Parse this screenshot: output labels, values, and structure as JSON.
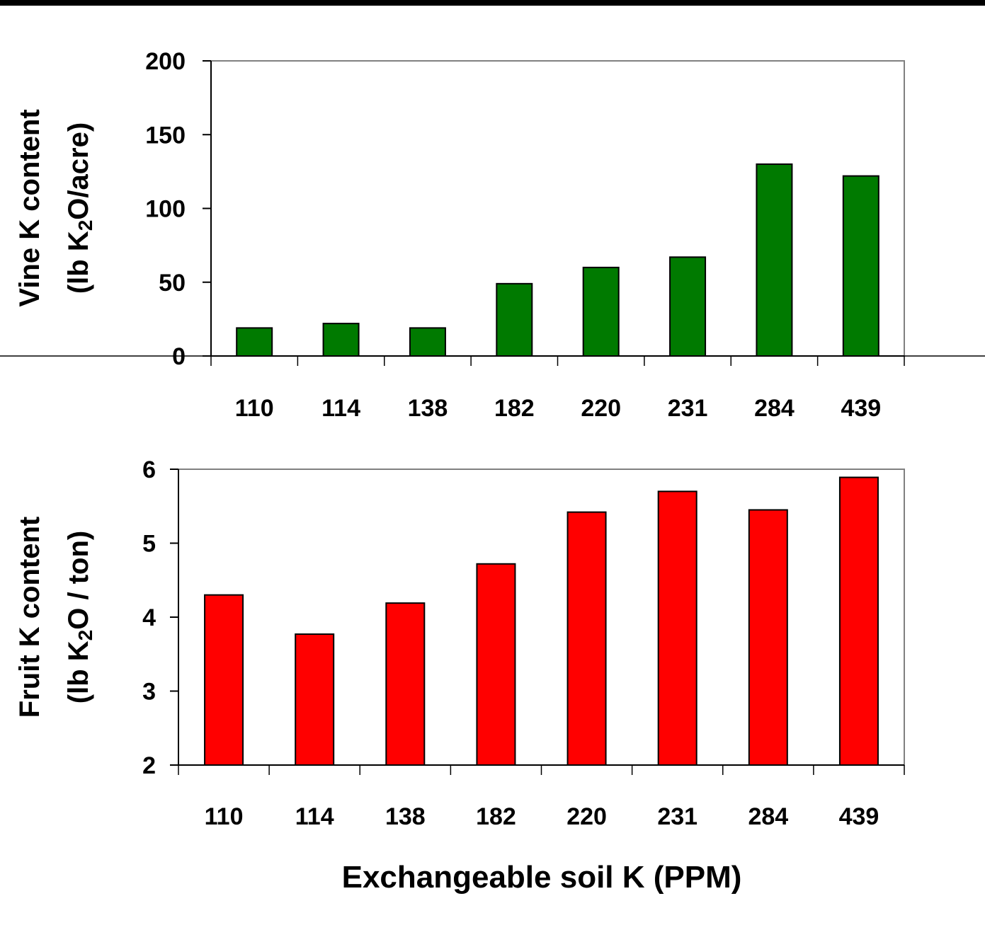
{
  "chart_data": [
    {
      "type": "bar",
      "categories": [
        "110",
        "114",
        "138",
        "182",
        "220",
        "231",
        "284",
        "439"
      ],
      "values": [
        19,
        22,
        19,
        49,
        60,
        67,
        130,
        122
      ],
      "ylabel_line1": "Vine K content",
      "ylabel_line2": {
        "pre": "(lb K",
        "sub": "2",
        "post": "O/acre)"
      },
      "ylim": [
        0,
        200
      ],
      "yticks": [
        "0",
        "50",
        "100",
        "150",
        "200"
      ],
      "bar_color": "#007a00",
      "grid": false
    },
    {
      "type": "bar",
      "categories": [
        "110",
        "114",
        "138",
        "182",
        "220",
        "231",
        "284",
        "439"
      ],
      "values": [
        4.3,
        3.77,
        4.19,
        4.72,
        5.42,
        5.7,
        5.45,
        5.89
      ],
      "ylabel_line1": "Fruit K content",
      "ylabel_line2": {
        "pre": "(lb K",
        "sub": "2",
        "post": "O / ton)"
      },
      "ylim": [
        2,
        6
      ],
      "yticks": [
        "2",
        "3",
        "4",
        "5",
        "6"
      ],
      "bar_color": "#ff0000",
      "grid": false
    }
  ],
  "xlabel": "Exchangeable soil K (PPM)"
}
